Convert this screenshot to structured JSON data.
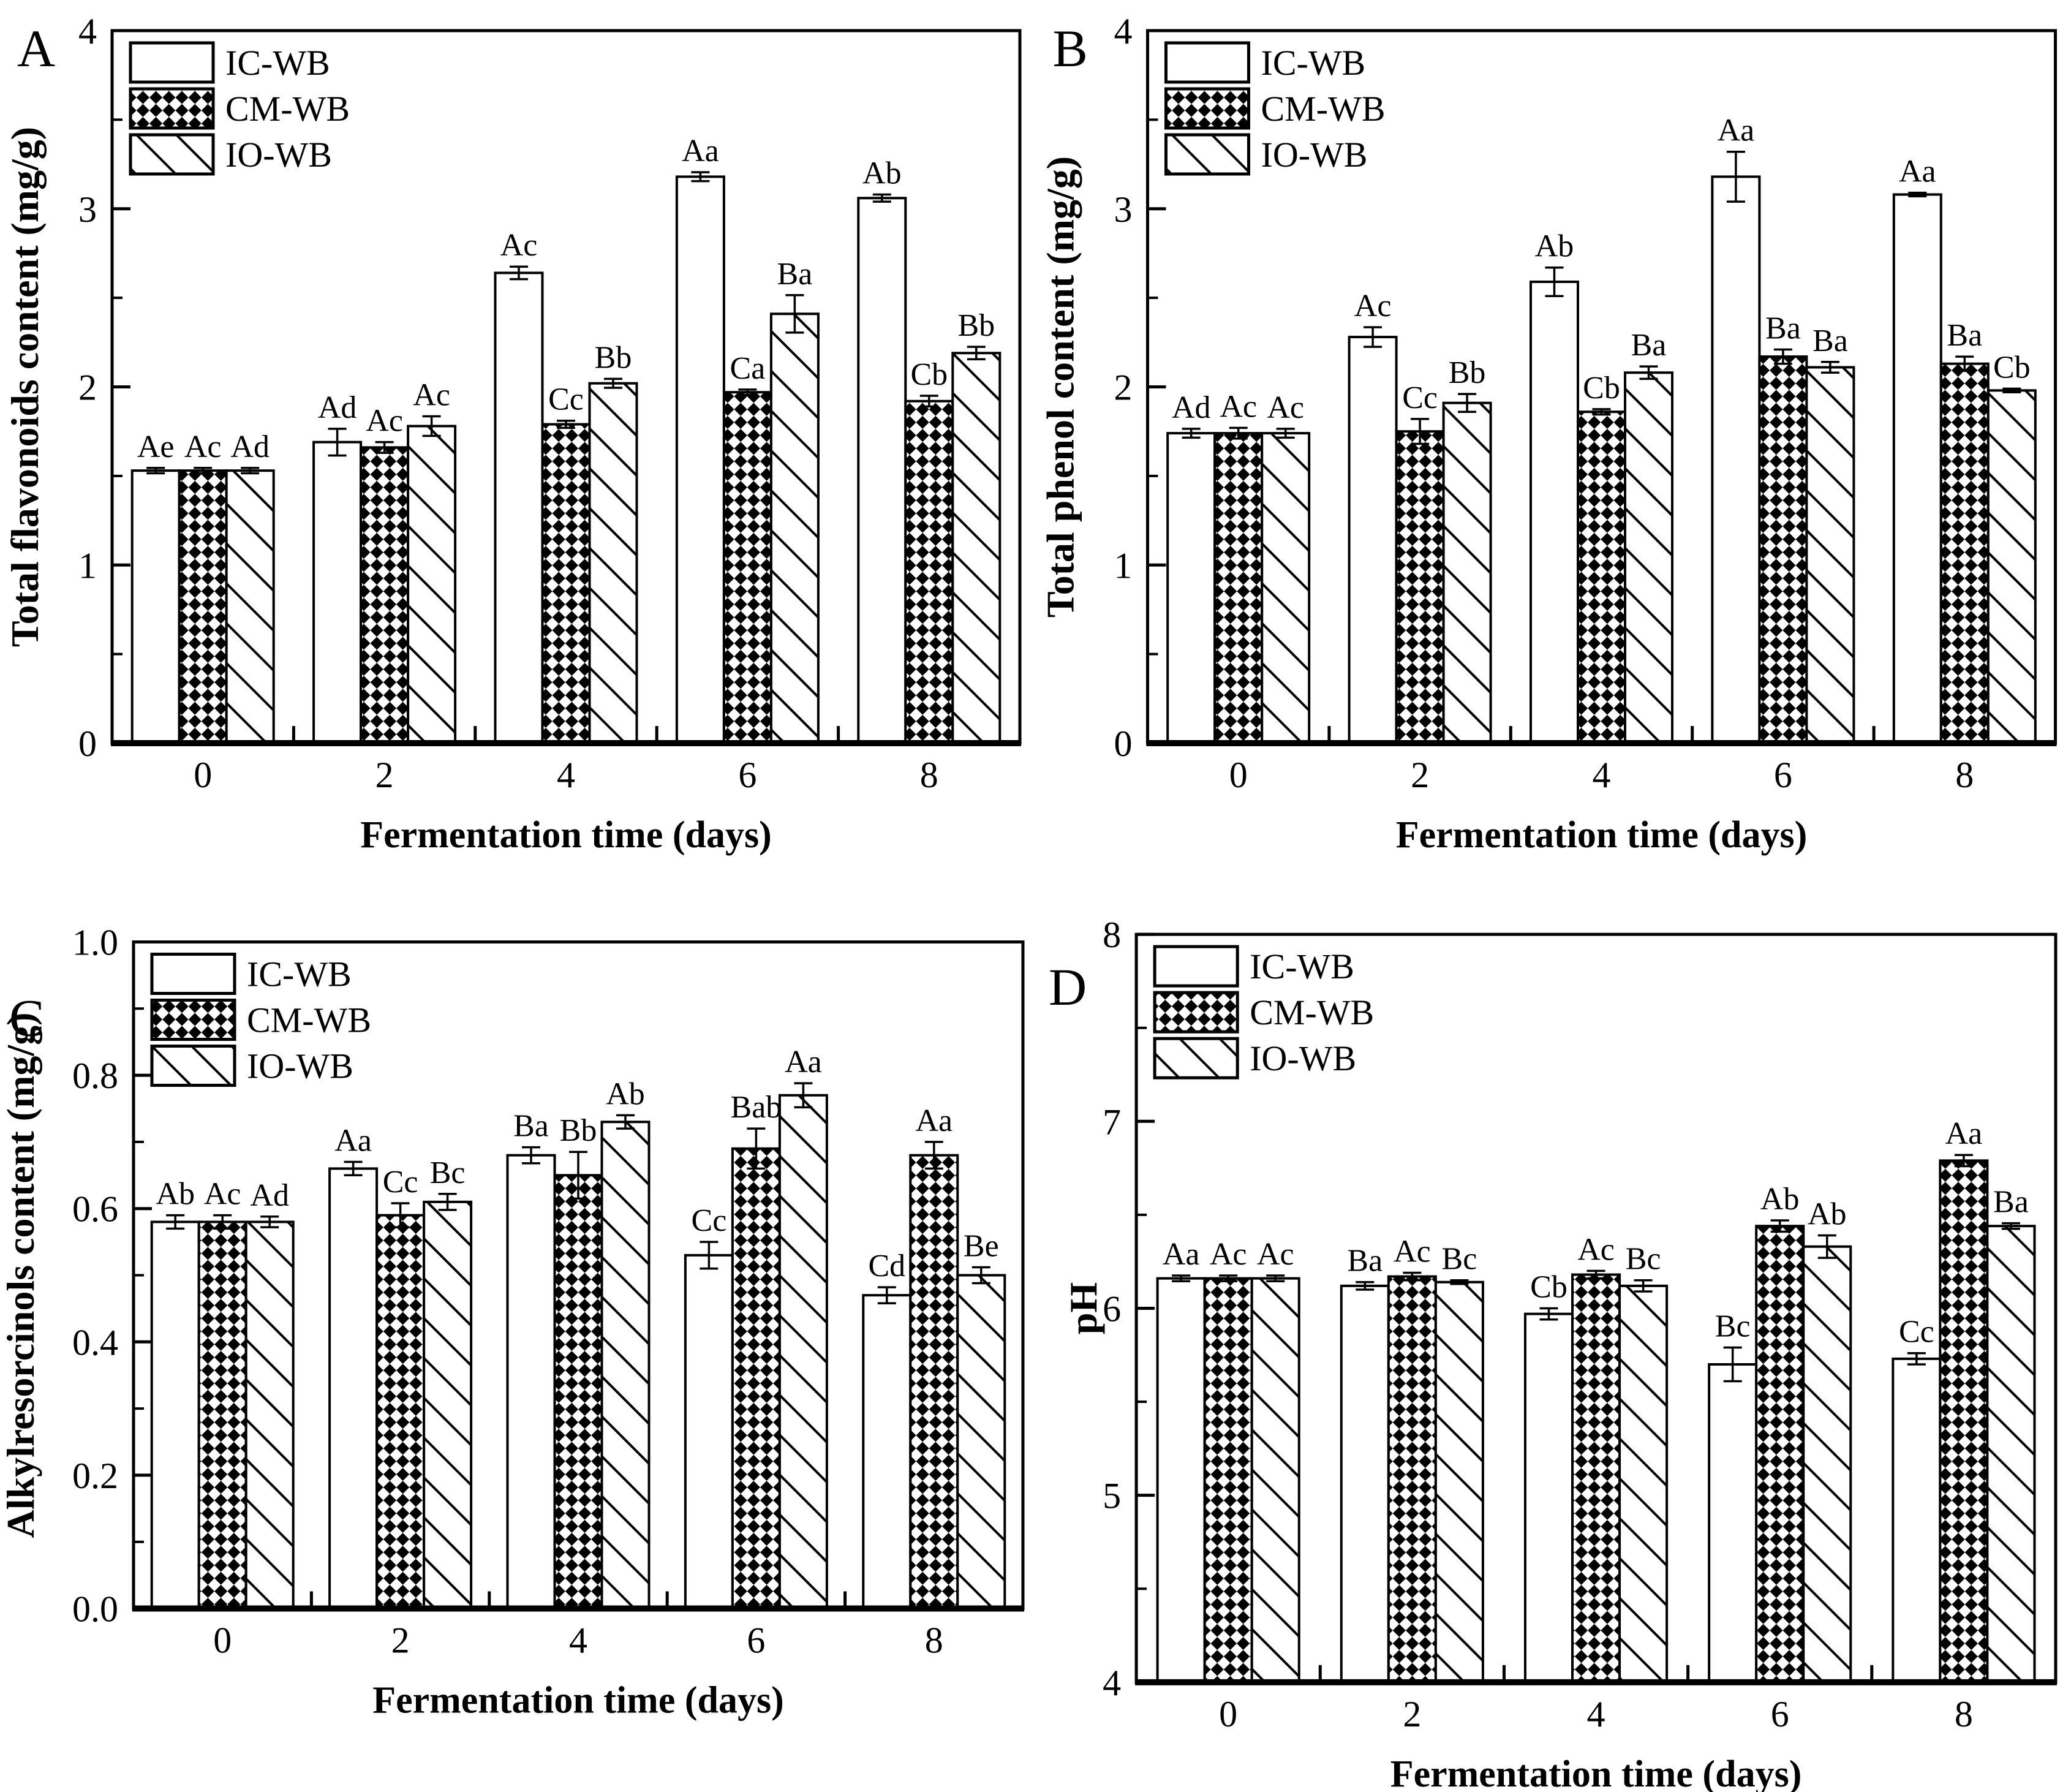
{
  "figure_title": "",
  "colors": {
    "ink": "#000000",
    "paper": "#ffffff"
  },
  "legend_labels": [
    "IC-WB",
    "CM-WB",
    "IO-WB"
  ],
  "chart_data": [
    {
      "type": "bar",
      "panel_label": "A",
      "title": "",
      "ylabel": "Total flavonoids content (mg/g)",
      "xlabel": "Fermentation time (days)",
      "ylim": [
        0,
        4
      ],
      "ytick_step": 1,
      "yminor_step": 0.5,
      "ydecimals": 0,
      "grid": "off",
      "legend_position": "top-left-inside",
      "categories": [
        "0",
        "2",
        "4",
        "6",
        "8"
      ],
      "series": [
        {
          "name": "IC-WB",
          "pattern": "plain",
          "values": [
            1.53,
            1.69,
            2.64,
            3.18,
            3.06
          ],
          "errors": [
            0.015,
            0.075,
            0.035,
            0.025,
            0.02
          ],
          "sig_labels": [
            "Ae",
            "Ad",
            "Ac",
            "Aa",
            "Ab"
          ]
        },
        {
          "name": "CM-WB",
          "pattern": "checker",
          "values": [
            1.53,
            1.66,
            1.79,
            1.97,
            1.92
          ],
          "errors": [
            0.015,
            0.03,
            0.02,
            0.015,
            0.03
          ],
          "sig_labels": [
            "Ac",
            "Ac",
            "Cc",
            "Ca",
            "Cb"
          ]
        },
        {
          "name": "IO-WB",
          "pattern": "diagonal",
          "values": [
            1.53,
            1.78,
            2.02,
            2.41,
            2.19
          ],
          "errors": [
            0.015,
            0.055,
            0.025,
            0.105,
            0.035
          ],
          "sig_labels": [
            "Ad",
            "Ac",
            "Bb",
            "Ba",
            "Bb"
          ]
        }
      ]
    },
    {
      "type": "bar",
      "panel_label": "B",
      "title": "",
      "ylabel": "Total phenol content (mg/g)",
      "xlabel": "Fermentation time (days)",
      "ylim": [
        0,
        4
      ],
      "ytick_step": 1,
      "yminor_step": 0.5,
      "ydecimals": 0,
      "grid": "off",
      "legend_position": "top-left-inside",
      "categories": [
        "0",
        "2",
        "4",
        "6",
        "8"
      ],
      "series": [
        {
          "name": "IC-WB",
          "pattern": "plain",
          "values": [
            1.74,
            2.28,
            2.59,
            3.18,
            3.08
          ],
          "errors": [
            0.025,
            0.055,
            0.08,
            0.14,
            0.01
          ],
          "sig_labels": [
            "Ad",
            "Ac",
            "Ab",
            "Aa",
            "Aa"
          ]
        },
        {
          "name": "CM-WB",
          "pattern": "checker",
          "values": [
            1.74,
            1.75,
            1.86,
            2.17,
            2.13
          ],
          "errors": [
            0.03,
            0.07,
            0.015,
            0.04,
            0.04
          ],
          "sig_labels": [
            "Ac",
            "Cc",
            "Cb",
            "Ba",
            "Ba"
          ]
        },
        {
          "name": "IO-WB",
          "pattern": "diagonal",
          "values": [
            1.74,
            1.91,
            2.08,
            2.11,
            1.98
          ],
          "errors": [
            0.025,
            0.05,
            0.035,
            0.03,
            0.01
          ],
          "sig_labels": [
            "Ac",
            "Bb",
            "Ba",
            "Ba",
            "Cb"
          ]
        }
      ]
    },
    {
      "type": "bar",
      "panel_label": "C",
      "title": "",
      "ylabel": "Alkylresorcinols content (mg/g)",
      "xlabel": "Fermentation time (days)",
      "ylim": [
        0,
        1
      ],
      "ytick_step": 0.2,
      "yminor_step": 0.1,
      "ydecimals": 1,
      "grid": "off",
      "legend_position": "top-left-inside",
      "categories": [
        "0",
        "2",
        "4",
        "6",
        "8"
      ],
      "series": [
        {
          "name": "IC-WB",
          "pattern": "plain",
          "values": [
            0.58,
            0.66,
            0.68,
            0.53,
            0.47
          ],
          "errors": [
            0.01,
            0.01,
            0.012,
            0.02,
            0.012
          ],
          "sig_labels": [
            "Ab",
            "Aa",
            "Ba",
            "Cc",
            "Cd"
          ]
        },
        {
          "name": "CM-WB",
          "pattern": "checker",
          "values": [
            0.58,
            0.59,
            0.65,
            0.69,
            0.68
          ],
          "errors": [
            0.01,
            0.018,
            0.035,
            0.03,
            0.02
          ],
          "sig_labels": [
            "Ac",
            "Cc",
            "Bb",
            "Bab",
            "Aa"
          ]
        },
        {
          "name": "IO-WB",
          "pattern": "diagonal",
          "values": [
            0.58,
            0.61,
            0.73,
            0.77,
            0.5
          ],
          "errors": [
            0.008,
            0.012,
            0.01,
            0.018,
            0.012
          ],
          "sig_labels": [
            "Ad",
            "Bc",
            "Ab",
            "Aa",
            "Be"
          ]
        }
      ]
    },
    {
      "type": "bar",
      "panel_label": "D",
      "title": "",
      "ylabel": "pH",
      "xlabel": "Fermentation time (days)",
      "ylim": [
        4,
        8
      ],
      "ytick_step": 1,
      "yminor_step": 0.5,
      "ydecimals": 0,
      "grid": "off",
      "legend_position": "top-left-inside",
      "categories": [
        "0",
        "2",
        "4",
        "6",
        "8"
      ],
      "series": [
        {
          "name": "IC-WB",
          "pattern": "plain",
          "values": [
            6.16,
            6.12,
            5.97,
            5.7,
            5.73
          ],
          "errors": [
            0.015,
            0.02,
            0.03,
            0.09,
            0.03
          ],
          "sig_labels": [
            "Aa",
            "Ba",
            "Cb",
            "Bc",
            "Cc"
          ]
        },
        {
          "name": "CM-WB",
          "pattern": "checker",
          "values": [
            6.16,
            6.17,
            6.18,
            6.44,
            6.79
          ],
          "errors": [
            0.015,
            0.02,
            0.02,
            0.03,
            0.03
          ],
          "sig_labels": [
            "Ac",
            "Ac",
            "Ac",
            "Ab",
            "Aa"
          ]
        },
        {
          "name": "IO-WB",
          "pattern": "diagonal",
          "values": [
            6.16,
            6.14,
            6.12,
            6.33,
            6.44
          ],
          "errors": [
            0.015,
            0.01,
            0.03,
            0.06,
            0.015
          ],
          "sig_labels": [
            "Ac",
            "Bc",
            "Bc",
            "Ab",
            "Ba"
          ]
        }
      ]
    }
  ]
}
